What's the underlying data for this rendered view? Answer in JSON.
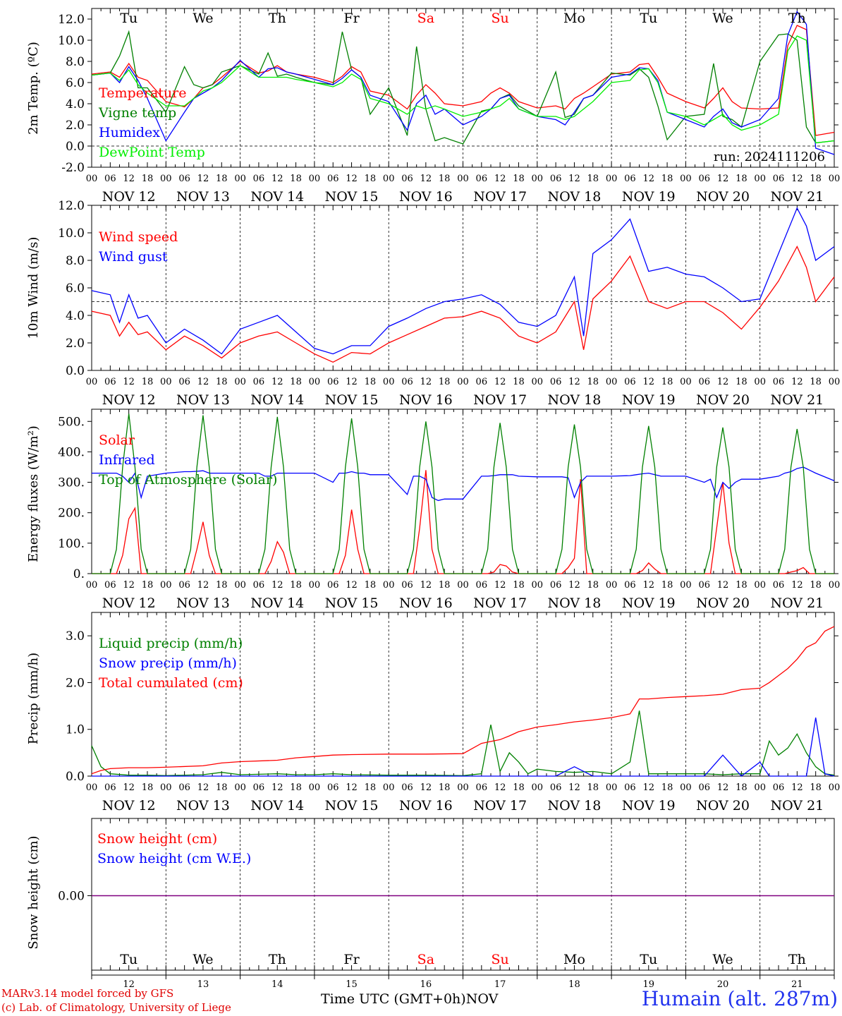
{
  "chart_data": [
    {
      "type": "line",
      "panel": "temperature",
      "ylabel": "2m Temp. (ºC)",
      "ylim": [
        -2,
        13
      ],
      "yticks": [
        "-2.0",
        "0.0",
        "2.0",
        "4.0",
        "6.0",
        "8.0",
        "10.0",
        "12.0"
      ],
      "reference_line": 0,
      "day_labels": [
        "Tu",
        "We",
        "Th",
        "Fr",
        "Sa",
        "Su",
        "Mo",
        "Tu",
        "We",
        "Th"
      ],
      "run_label": "run: 2024111206",
      "x_hours": [
        0,
        6,
        9,
        12,
        15,
        18,
        24,
        30,
        33,
        36,
        39,
        42,
        48,
        54,
        57,
        60,
        63,
        66,
        72,
        78,
        81,
        84,
        87,
        90,
        96,
        102,
        105,
        108,
        111,
        114,
        120,
        126,
        129,
        132,
        135,
        138,
        144,
        150,
        153,
        156,
        159,
        162,
        168,
        174,
        177,
        180,
        183,
        186,
        192,
        198,
        201,
        204,
        207,
        210,
        216,
        222,
        225,
        228,
        231,
        234,
        240
      ],
      "series": [
        {
          "name": "Temperature",
          "color": "#ff0000",
          "values": [
            6.8,
            7.0,
            6.5,
            7.8,
            6.5,
            6.2,
            4.2,
            3.7,
            4.5,
            5.5,
            5.8,
            6.5,
            8.0,
            6.9,
            7.1,
            7.6,
            7.0,
            6.8,
            6.5,
            6.0,
            6.6,
            7.5,
            7.0,
            5.2,
            4.8,
            3.5,
            4.8,
            5.8,
            5.0,
            4.0,
            3.8,
            4.2,
            5.0,
            5.5,
            5.0,
            4.2,
            3.6,
            3.8,
            3.5,
            4.5,
            5.0,
            5.6,
            6.8,
            7.0,
            7.7,
            7.8,
            6.5,
            5.0,
            4.2,
            3.6,
            4.5,
            5.5,
            4.2,
            3.6,
            3.5,
            3.6,
            9.5,
            11.4,
            11.0,
            1.0,
            1.3
          ]
        },
        {
          "name": "Vigne temp",
          "color": "#008000",
          "values": [
            6.7,
            6.9,
            8.5,
            10.8,
            5.5,
            5.5,
            3.2,
            7.5,
            5.8,
            5.5,
            5.8,
            7.0,
            7.6,
            6.8,
            8.8,
            6.6,
            6.8,
            6.5,
            6.0,
            5.8,
            10.8,
            7.2,
            6.5,
            3.0,
            5.5,
            1.0,
            9.4,
            3.5,
            0.5,
            0.8,
            0.2,
            3.3,
            3.5,
            4.5,
            4.9,
            3.8,
            2.8,
            7.0,
            2.7,
            3.0,
            4.5,
            4.8,
            6.9,
            6.7,
            7.3,
            6.5,
            3.8,
            0.6,
            2.8,
            3.0,
            7.8,
            2.8,
            2.5,
            1.8,
            8.0,
            10.5,
            10.6,
            10.0,
            1.8,
            0.3,
            0.5
          ]
        },
        {
          "name": "Humidex",
          "color": "#0000ff",
          "values": [
            6.7,
            6.9,
            6.0,
            7.5,
            6.2,
            4.5,
            0.5,
            3.2,
            4.5,
            5.0,
            5.5,
            6.2,
            8.1,
            6.5,
            7.3,
            7.4,
            7.0,
            6.8,
            6.3,
            5.8,
            6.4,
            7.2,
            6.5,
            4.8,
            4.2,
            1.5,
            4.0,
            4.8,
            3.0,
            3.5,
            2.0,
            2.8,
            3.5,
            4.5,
            4.8,
            3.5,
            2.8,
            2.5,
            2.0,
            3.2,
            4.5,
            4.8,
            6.5,
            6.8,
            7.4,
            7.3,
            6.2,
            3.2,
            2.5,
            1.8,
            2.8,
            3.5,
            2.2,
            1.8,
            2.5,
            4.5,
            10.5,
            12.7,
            11.5,
            -0.2,
            -0.8
          ]
        },
        {
          "name": "DewPoint Temp",
          "color": "#00ee00",
          "values": [
            6.7,
            6.9,
            6.2,
            7.2,
            5.8,
            5.0,
            3.8,
            3.8,
            4.5,
            5.2,
            5.5,
            6.0,
            7.6,
            6.5,
            6.5,
            6.5,
            6.5,
            6.3,
            6.0,
            5.6,
            6.0,
            6.8,
            6.3,
            4.5,
            4.0,
            3.0,
            3.8,
            3.5,
            3.8,
            3.5,
            2.8,
            3.2,
            3.5,
            3.8,
            4.5,
            3.5,
            2.8,
            2.8,
            2.5,
            2.8,
            3.5,
            4.2,
            6.0,
            6.2,
            7.2,
            7.3,
            6.0,
            3.2,
            2.8,
            2.0,
            2.5,
            3.0,
            2.0,
            1.5,
            2.0,
            3.0,
            9.0,
            10.4,
            10.0,
            0.3,
            0.5
          ]
        }
      ]
    },
    {
      "type": "line",
      "panel": "wind",
      "ylabel": "10m Wind (m/s)",
      "ylim": [
        0,
        12
      ],
      "yticks": [
        "0.0",
        "2.0",
        "4.0",
        "6.0",
        "8.0",
        "10.0",
        "12.0"
      ],
      "reference_line": 5,
      "x_hours": [
        0,
        6,
        9,
        12,
        15,
        18,
        24,
        30,
        36,
        42,
        48,
        54,
        60,
        66,
        72,
        78,
        84,
        90,
        96,
        102,
        108,
        114,
        120,
        126,
        132,
        138,
        144,
        150,
        156,
        159,
        162,
        168,
        174,
        180,
        186,
        192,
        198,
        204,
        210,
        216,
        222,
        228,
        231,
        234,
        240
      ],
      "series": [
        {
          "name": "Wind speed",
          "color": "#ff0000",
          "values": [
            4.3,
            4.0,
            2.5,
            3.5,
            2.6,
            2.8,
            1.5,
            2.5,
            1.8,
            0.9,
            2.0,
            2.5,
            2.8,
            2.0,
            1.2,
            0.6,
            1.3,
            1.2,
            2.0,
            2.6,
            3.2,
            3.8,
            3.9,
            4.3,
            3.8,
            2.5,
            2.0,
            2.8,
            5.0,
            1.5,
            5.2,
            6.5,
            8.3,
            5.0,
            4.5,
            5.0,
            5.0,
            4.2,
            3.0,
            4.6,
            6.5,
            9.0,
            7.5,
            5.0,
            6.8
          ]
        },
        {
          "name": "Wind gust",
          "color": "#0000ff",
          "values": [
            5.8,
            5.5,
            3.5,
            5.5,
            3.8,
            4.0,
            2.0,
            3.0,
            2.2,
            1.2,
            3.0,
            3.5,
            4.0,
            2.8,
            1.6,
            1.2,
            1.8,
            1.8,
            3.2,
            3.8,
            4.5,
            5.0,
            5.2,
            5.5,
            4.8,
            3.5,
            3.2,
            4.0,
            6.8,
            2.5,
            8.5,
            9.5,
            11.0,
            7.2,
            7.5,
            7.0,
            6.8,
            6.0,
            5.0,
            5.2,
            8.5,
            11.8,
            10.5,
            8.0,
            9.0
          ]
        }
      ]
    },
    {
      "type": "line",
      "panel": "energy",
      "ylabel": "Energy fluxes (W/m²)",
      "ylim": [
        0,
        540
      ],
      "yticks": [
        "0.",
        "100.",
        "200.",
        "300.",
        "400.",
        "500."
      ],
      "x_hours": [
        0,
        6,
        8,
        10,
        12,
        14,
        16,
        18,
        24,
        30,
        32,
        34,
        36,
        38,
        40,
        42,
        48,
        54,
        56,
        58,
        60,
        62,
        64,
        66,
        72,
        78,
        80,
        82,
        84,
        86,
        88,
        90,
        96,
        102,
        104,
        106,
        108,
        110,
        112,
        114,
        120,
        126,
        128,
        130,
        132,
        134,
        136,
        138,
        144,
        150,
        152,
        154,
        156,
        158,
        160,
        162,
        168,
        174,
        176,
        178,
        180,
        182,
        184,
        186,
        192,
        198,
        200,
        202,
        204,
        206,
        208,
        210,
        216,
        222,
        224,
        226,
        228,
        230,
        232,
        234,
        240
      ],
      "series": [
        {
          "name": "Solar",
          "color": "#ff0000",
          "values": [
            0,
            0,
            0,
            60,
            180,
            215,
            0,
            0,
            0,
            0,
            0,
            80,
            170,
            60,
            0,
            0,
            0,
            0,
            0,
            40,
            105,
            70,
            0,
            0,
            0,
            0,
            0,
            60,
            210,
            80,
            0,
            0,
            0,
            0,
            0,
            150,
            340,
            80,
            0,
            0,
            0,
            0,
            0,
            5,
            30,
            25,
            5,
            0,
            0,
            0,
            0,
            20,
            50,
            310,
            0,
            0,
            0,
            0,
            0,
            10,
            35,
            15,
            0,
            0,
            0,
            0,
            0,
            150,
            300,
            100,
            0,
            0,
            0,
            0,
            0,
            5,
            10,
            20,
            0,
            0,
            0
          ]
        },
        {
          "name": "Infrared",
          "color": "#0000ff",
          "values": [
            330,
            330,
            330,
            320,
            300,
            330,
            250,
            320,
            330,
            335,
            335,
            336,
            338,
            330,
            330,
            330,
            330,
            330,
            320,
            320,
            330,
            330,
            330,
            330,
            330,
            300,
            330,
            330,
            335,
            330,
            330,
            325,
            325,
            260,
            320,
            320,
            310,
            250,
            240,
            245,
            245,
            320,
            320,
            322,
            325,
            325,
            325,
            320,
            318,
            318,
            318,
            315,
            250,
            300,
            320,
            320,
            320,
            322,
            325,
            328,
            330,
            325,
            320,
            320,
            320,
            300,
            310,
            250,
            300,
            280,
            300,
            310,
            310,
            320,
            330,
            335,
            345,
            350,
            340,
            330,
            305
          ]
        },
        {
          "name": "Top of Atmosphere (Solar)",
          "color": "#008000",
          "values": [
            0,
            0,
            80,
            350,
            525,
            350,
            80,
            0,
            0,
            0,
            80,
            350,
            520,
            350,
            80,
            0,
            0,
            0,
            80,
            350,
            515,
            350,
            80,
            0,
            0,
            0,
            80,
            350,
            510,
            350,
            80,
            0,
            0,
            0,
            80,
            350,
            500,
            350,
            80,
            0,
            0,
            0,
            80,
            350,
            495,
            350,
            80,
            0,
            0,
            0,
            80,
            350,
            490,
            350,
            80,
            0,
            0,
            0,
            80,
            350,
            485,
            350,
            80,
            0,
            0,
            0,
            80,
            350,
            480,
            350,
            80,
            0,
            0,
            0,
            80,
            350,
            475,
            350,
            80,
            0,
            0
          ]
        }
      ]
    },
    {
      "type": "line",
      "panel": "precip",
      "ylabel": "Precip (mm/h)",
      "ylim": [
        0,
        3.5
      ],
      "yticks": [
        "0.0",
        "1.0",
        "2.0",
        "3.0"
      ],
      "x_hours": [
        0,
        3,
        6,
        12,
        18,
        24,
        36,
        42,
        48,
        60,
        66,
        72,
        78,
        84,
        96,
        108,
        120,
        126,
        129,
        132,
        135,
        138,
        141,
        144,
        150,
        156,
        162,
        168,
        174,
        177,
        180,
        186,
        192,
        198,
        204,
        210,
        216,
        219,
        222,
        225,
        228,
        231,
        234,
        237,
        240
      ],
      "series": [
        {
          "name": "Liquid precip (mm/h)",
          "color": "#008000",
          "values": [
            0.65,
            0.2,
            0.05,
            0.02,
            0.02,
            0.01,
            0.03,
            0.08,
            0.03,
            0.05,
            0.03,
            0.03,
            0.05,
            0.03,
            0.02,
            0.02,
            0.01,
            0.05,
            1.1,
            0.1,
            0.5,
            0.3,
            0.05,
            0.15,
            0.1,
            0.08,
            0.1,
            0.05,
            0.3,
            1.4,
            0.05,
            0.05,
            0.05,
            0.05,
            0.03,
            0.05,
            0.05,
            0.75,
            0.45,
            0.6,
            0.9,
            0.5,
            0.2,
            0.05,
            0.02
          ]
        },
        {
          "name": "Snow precip (mm/h)",
          "color": "#0000ff",
          "values": [
            0,
            0,
            0,
            0,
            0,
            0,
            0,
            0,
            0,
            0,
            0,
            0,
            0,
            0,
            0,
            0,
            0,
            0,
            0,
            0,
            0,
            0,
            0,
            0,
            0,
            0.2,
            0,
            0,
            0,
            0,
            0,
            0,
            0,
            0,
            0.45,
            0,
            0.3,
            0,
            0,
            0,
            0,
            0,
            1.25,
            0.05,
            0
          ]
        },
        {
          "name": "Total cumulated (cm)",
          "color": "#ff0000",
          "values": [
            0.05,
            0.12,
            0.16,
            0.18,
            0.18,
            0.19,
            0.22,
            0.28,
            0.31,
            0.34,
            0.39,
            0.42,
            0.45,
            0.46,
            0.47,
            0.47,
            0.48,
            0.7,
            0.74,
            0.78,
            0.86,
            0.95,
            1.0,
            1.05,
            1.1,
            1.16,
            1.2,
            1.25,
            1.33,
            1.65,
            1.65,
            1.68,
            1.7,
            1.72,
            1.75,
            1.85,
            1.88,
            2.0,
            2.15,
            2.3,
            2.5,
            2.75,
            2.85,
            3.1,
            3.2
          ]
        }
      ]
    },
    {
      "type": "line",
      "panel": "snow",
      "ylabel": "Snow height (cm)",
      "yticks": [
        "0.00"
      ],
      "series": [
        {
          "name": "Snow height (cm)",
          "color": "#ff0000",
          "values": [
            0,
            0
          ]
        },
        {
          "name": "Snow height (cm W.E.)",
          "color": "#0000ff",
          "values": [
            0,
            0
          ]
        }
      ]
    }
  ],
  "hour_ticks": [
    "00",
    "06",
    "12",
    "18"
  ],
  "date_labels": [
    "NOV 12",
    "NOV 13",
    "NOV 14",
    "NOV 15",
    "NOV 16",
    "NOV 17",
    "NOV 18",
    "NOV 19",
    "NOV 20",
    "NOV 21"
  ],
  "day_numbers": [
    "12",
    "13",
    "14",
    "15",
    "16",
    "17",
    "18",
    "19",
    "20",
    "21"
  ],
  "weekend_color": "#ff0000",
  "weekend_days": [
    4,
    5
  ],
  "footer": {
    "credit_line1": "MARv3.14 model forced by GFS",
    "credit_line2": "(c) Lab. of Climatology, University of Liege",
    "x_axis_title": "Time UTC (GMT+0h)",
    "x_axis_unit": "NOV",
    "location": "Humain (alt. 287m)"
  }
}
